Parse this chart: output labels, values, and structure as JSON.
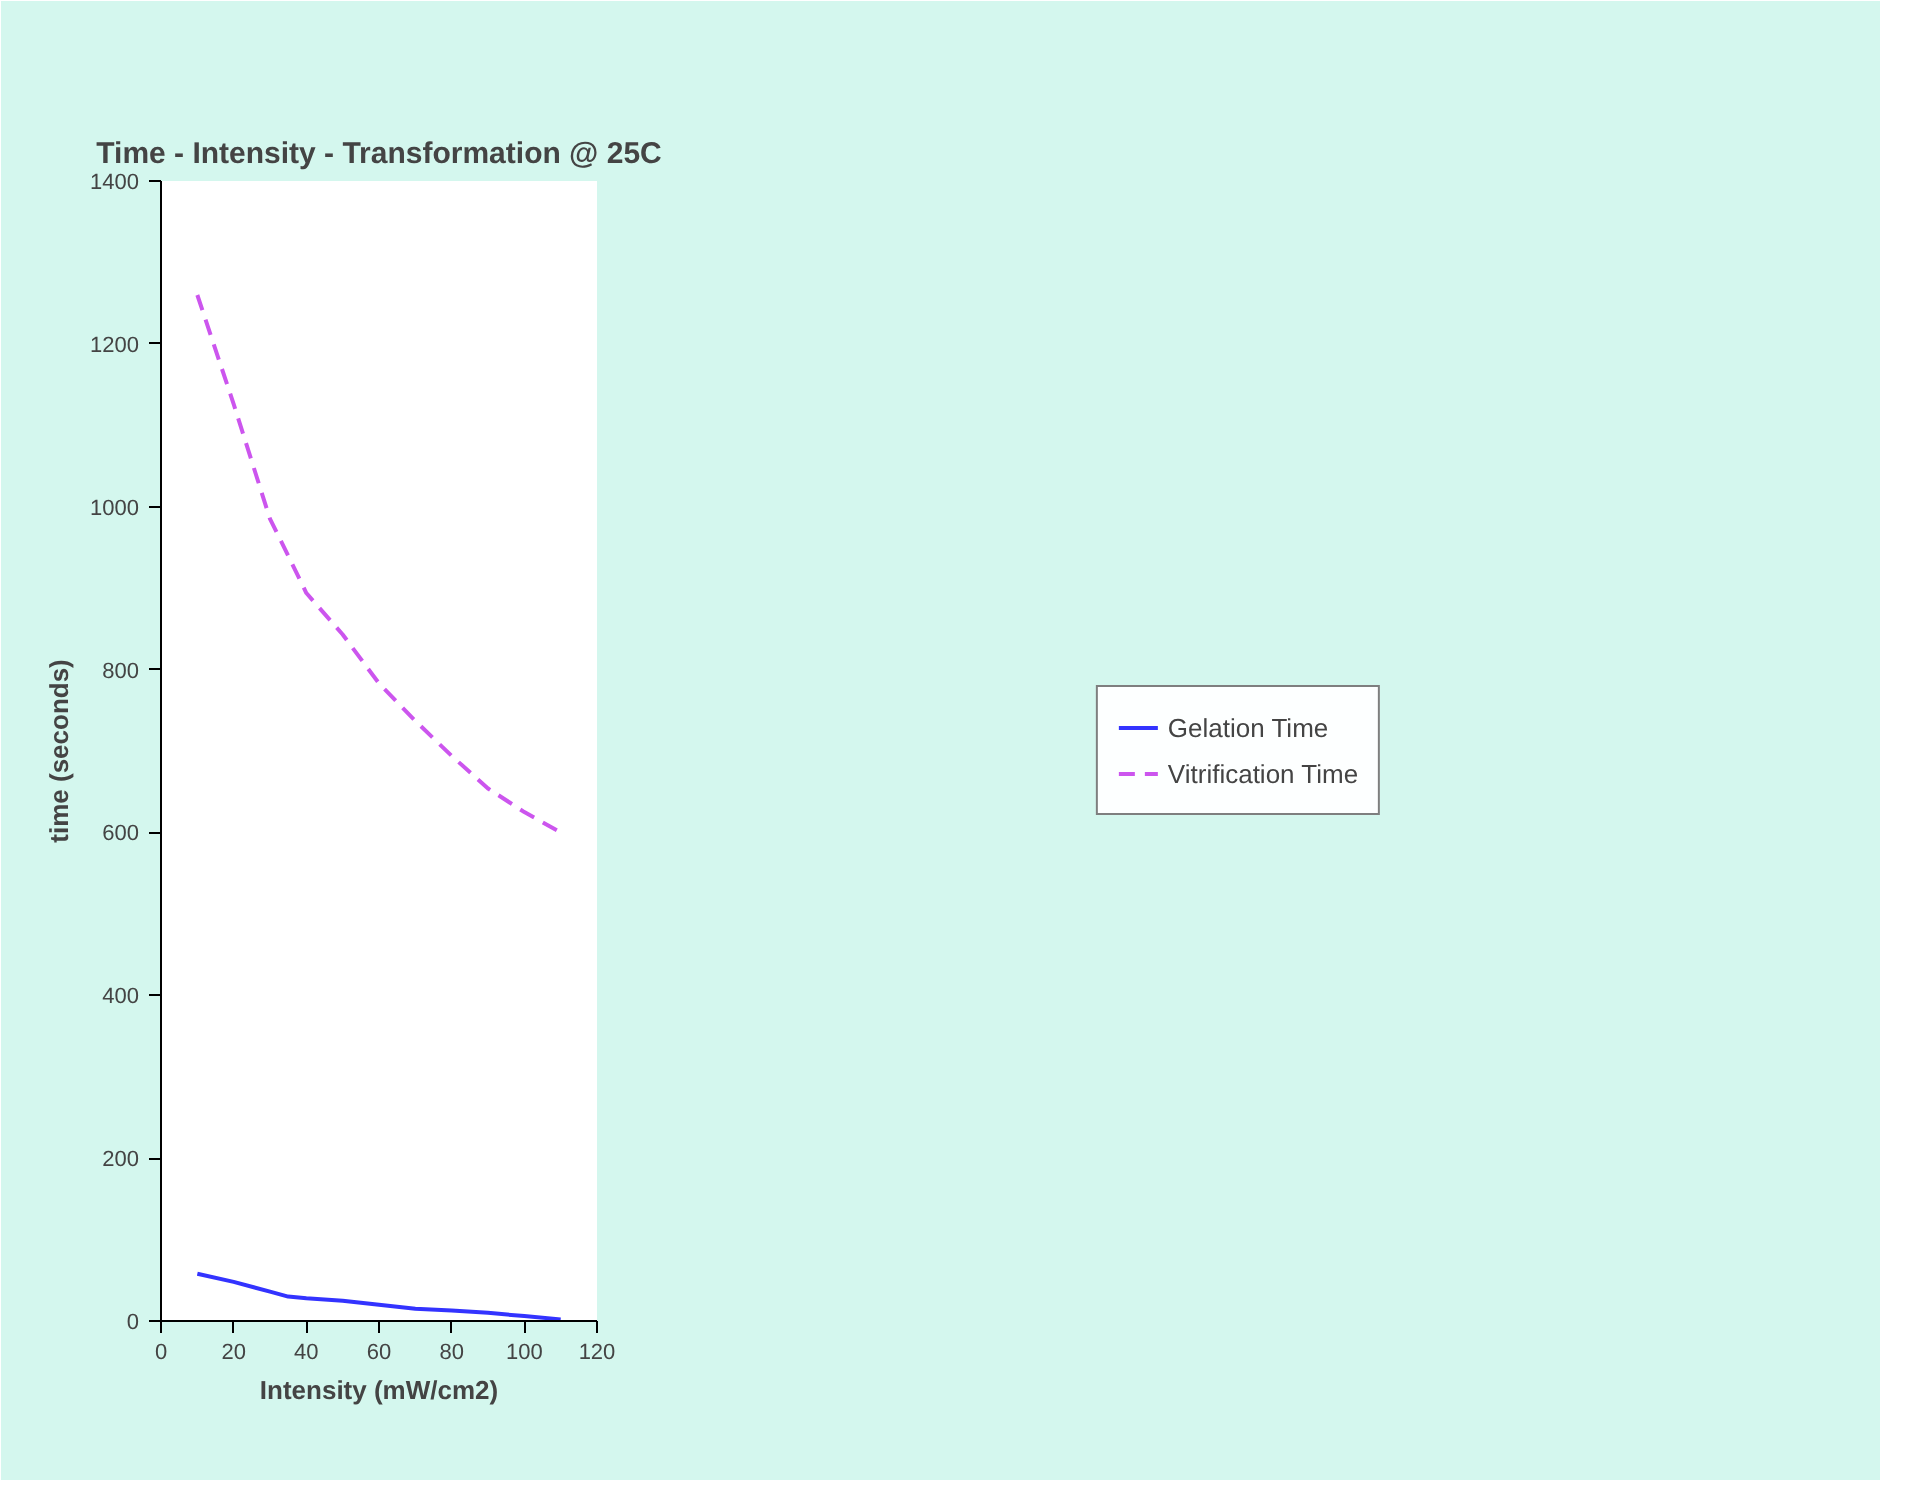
{
  "chart_data": {
    "type": "line",
    "title": "Time - Intensity - Transformation @ 25C",
    "xlabel": "Intensity (mW/cm2)",
    "ylabel": "time (seconds)",
    "x": [
      10,
      20,
      30,
      35,
      40,
      50,
      60,
      70,
      80,
      90,
      100,
      110
    ],
    "series": [
      {
        "name": "Gelation Time",
        "color": "#3333ff",
        "line_style": "solid",
        "values": [
          58,
          48,
          36,
          30,
          28,
          25,
          20,
          15,
          13,
          10,
          6,
          2
        ]
      },
      {
        "name": "Vitrification Time",
        "color": "#cc55ee",
        "line_style": "dashed",
        "values": [
          1260,
          1126,
          985,
          940,
          894,
          843,
          783,
          737,
          694,
          654,
          625,
          600
        ]
      }
    ],
    "xlim": [
      0,
      120
    ],
    "ylim": [
      0,
      1400
    ],
    "xticks": [
      0,
      20,
      40,
      60,
      80,
      100,
      120
    ],
    "yticks": [
      0,
      200,
      400,
      600,
      800,
      1000,
      1200,
      1400
    ],
    "grid": false,
    "legend": "right",
    "marker": "none"
  }
}
